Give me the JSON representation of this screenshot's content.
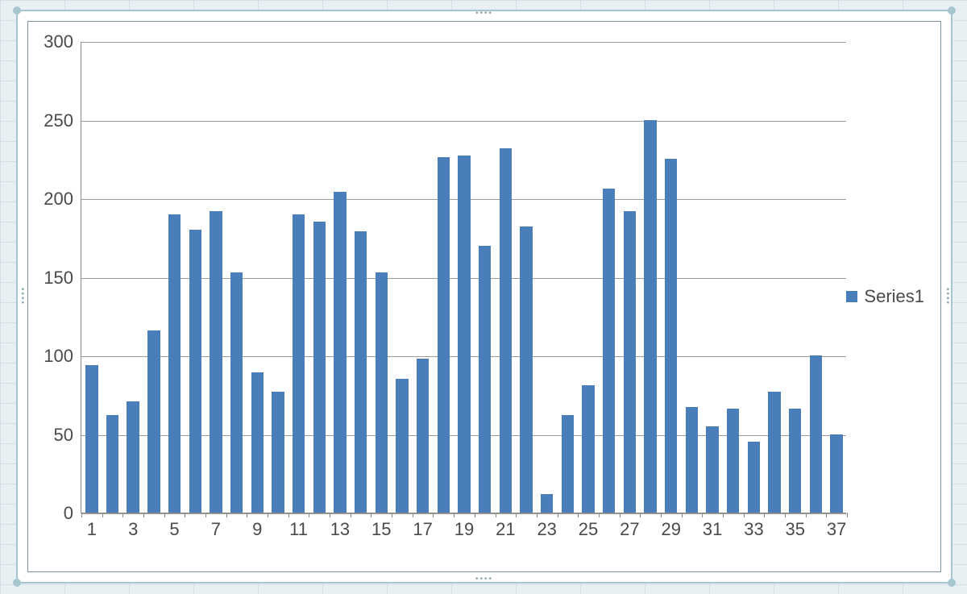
{
  "chart": {
    "type": "bar",
    "series_name": "Series1",
    "categories": [
      1,
      2,
      3,
      4,
      5,
      6,
      7,
      8,
      9,
      10,
      11,
      12,
      13,
      14,
      15,
      16,
      17,
      18,
      19,
      20,
      21,
      22,
      23,
      24,
      25,
      26,
      27,
      28,
      29,
      30,
      31,
      32,
      33,
      34,
      35,
      36,
      37
    ],
    "values": [
      94,
      62,
      71,
      116,
      190,
      180,
      192,
      153,
      89,
      77,
      190,
      185,
      204,
      179,
      153,
      85,
      98,
      226,
      227,
      170,
      232,
      182,
      12,
      62,
      81,
      206,
      192,
      250,
      225,
      67,
      55,
      66,
      45,
      77,
      66,
      100,
      50
    ],
    "bar_color": "#4a7ebb",
    "background_color": "#ffffff",
    "grid_color": "#9a9a9a",
    "axis_color": "#888888",
    "text_color": "#4a4a4a",
    "ylim": [
      0,
      300
    ],
    "ytick_step": 50,
    "xtick_step": 2,
    "bar_width_ratio": 0.6,
    "font_family": "Segoe UI",
    "tick_fontsize": 22,
    "legend_fontsize": 22,
    "chart_border_color": "#7a94a0",
    "object_border_color": "#a7c5cf"
  }
}
